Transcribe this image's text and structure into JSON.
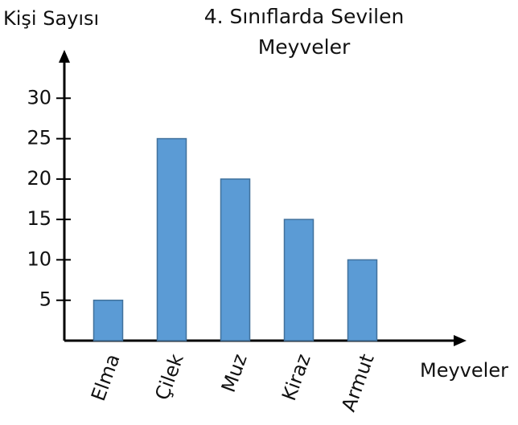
{
  "chart_data": {
    "type": "bar",
    "title": "4. Sınıflarda Sevilen Meyveler",
    "y_label": "Kişi Sayısı",
    "x_label": "Meyveler",
    "categories": [
      "Elma",
      "Çilek",
      "Muz",
      "Kiraz",
      "Armut"
    ],
    "values": [
      5,
      25,
      20,
      15,
      10
    ],
    "color": "#5b9bd5",
    "ylim": [
      0,
      35
    ],
    "yticks": [
      5,
      10,
      15,
      20,
      25,
      30
    ],
    "grid": false
  }
}
